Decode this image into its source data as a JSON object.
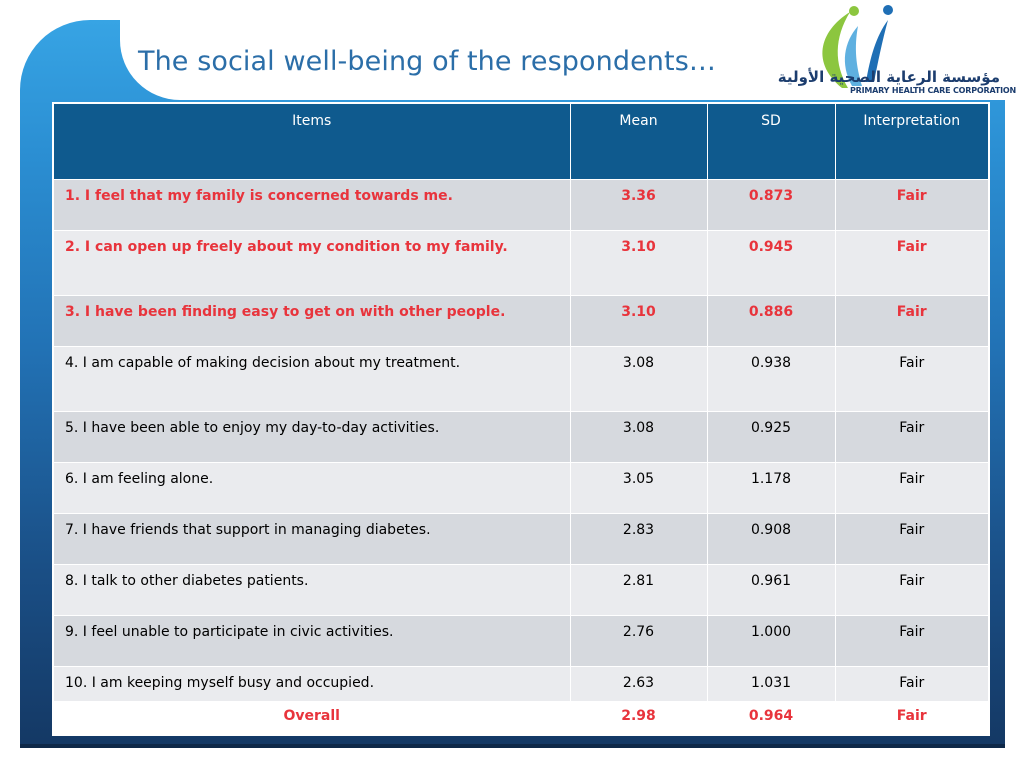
{
  "title": "The social well-being of the respondents…",
  "logo": {
    "arabic_name": "مؤسسة الرعاية الصحية الأولية",
    "english_name": "PRIMARY HEALTH CARE CORPORATION"
  },
  "colors": {
    "header_bg": "#0f5a8e",
    "row_dark": "#d6d9de",
    "row_light": "#eaebee",
    "highlight_text": "#e8343c",
    "title_text": "#2b6ea8"
  },
  "table": {
    "headers": [
      "Items",
      "Mean",
      "SD",
      "Interpretation"
    ],
    "rows": [
      {
        "item": "1. I feel that my family is concerned towards me.",
        "mean": "3.36",
        "sd": "0.873",
        "interpretation": "Fair"
      },
      {
        "item": "2. I can open up freely about my condition to my family.",
        "mean": "3.10",
        "sd": "0.945",
        "interpretation": "Fair"
      },
      {
        "item": "3. I have been finding easy to get on with other people.",
        "mean": "3.10",
        "sd": "0.886",
        "interpretation": "Fair"
      },
      {
        "item": "4. I am capable of making decision about my treatment.",
        "mean": "3.08",
        "sd": "0.938",
        "interpretation": "Fair"
      },
      {
        "item": "5. I have been able to enjoy my day-to-day activities.",
        "mean": "3.08",
        "sd": "0.925",
        "interpretation": "Fair"
      },
      {
        "item": "6. I am feeling alone.",
        "mean": "3.05",
        "sd": "1.178",
        "interpretation": "Fair"
      },
      {
        "item": "7. I have friends that support in managing diabetes.",
        "mean": "2.83",
        "sd": "0.908",
        "interpretation": "Fair"
      },
      {
        "item": "8. I talk to other diabetes patients.",
        "mean": "2.81",
        "sd": "0.961",
        "interpretation": "Fair"
      },
      {
        "item": "9. I feel unable to participate in civic activities.",
        "mean": "2.76",
        "sd": "1.000",
        "interpretation": "Fair"
      },
      {
        "item": "10. I am keeping myself busy and occupied.",
        "mean": "2.63",
        "sd": "1.031",
        "interpretation": "Fair"
      }
    ],
    "overall": {
      "item": "Overall",
      "mean": "2.98",
      "sd": "0.964",
      "interpretation": "Fair"
    }
  }
}
